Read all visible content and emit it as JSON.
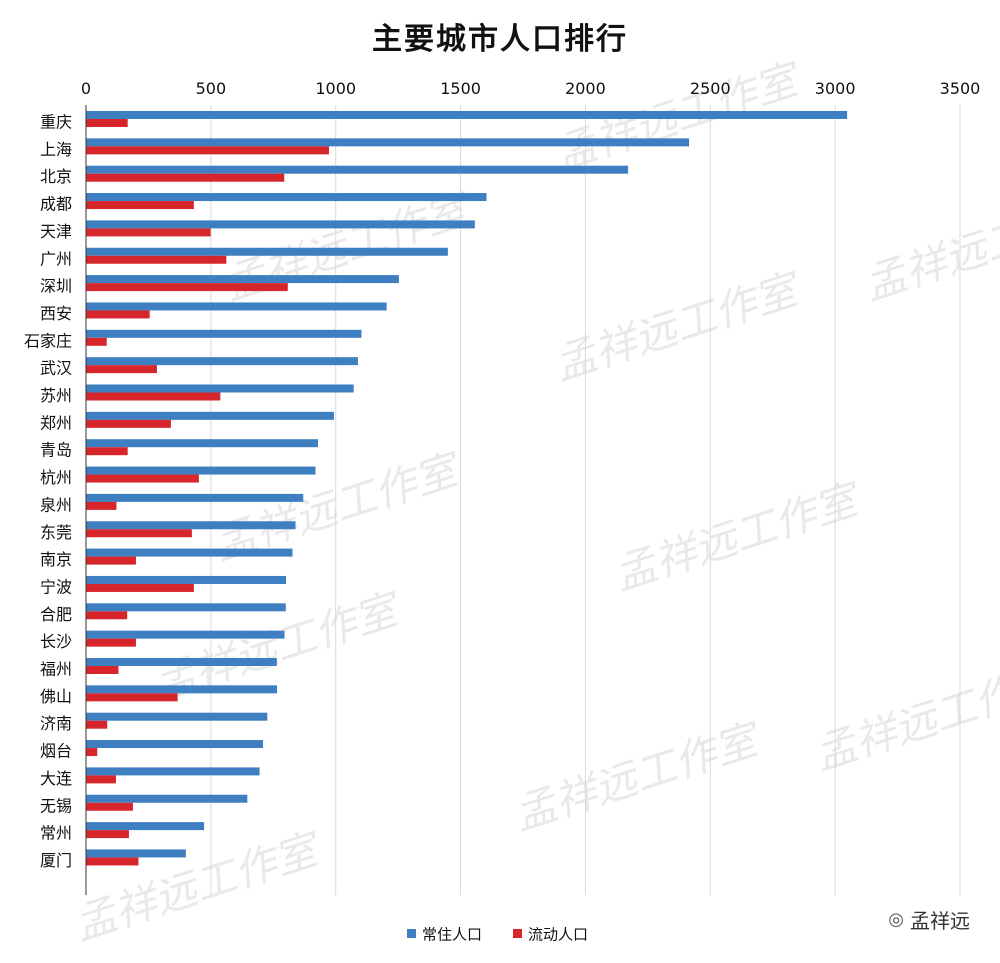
{
  "chart_data": {
    "type": "bar",
    "orientation": "horizontal",
    "title": "主要城市人口排行",
    "categories": [
      "重庆",
      "上海",
      "北京",
      "成都",
      "天津",
      "广州",
      "深圳",
      "西安",
      "石家庄",
      "武汉",
      "苏州",
      "郑州",
      "青岛",
      "杭州",
      "泉州",
      "东莞",
      "南京",
      "宁波",
      "合肥",
      "长沙",
      "福州",
      "佛山",
      "济南",
      "烟台",
      "大连",
      "无锡",
      "常州",
      "厦门"
    ],
    "series": [
      {
        "name": "常住人口",
        "color": "#3d7fc1",
        "values": [
          3048,
          2415,
          2171,
          1604,
          1557,
          1449,
          1253,
          1204,
          1103,
          1089,
          1072,
          993,
          929,
          919,
          870,
          839,
          827,
          801,
          800,
          795,
          764,
          765,
          726,
          709,
          695,
          646,
          473,
          400
        ]
      },
      {
        "name": "流动人口",
        "color": "#d7262b",
        "values": [
          167,
          973,
          794,
          432,
          499,
          562,
          808,
          255,
          83,
          284,
          538,
          340,
          167,
          452,
          122,
          424,
          200,
          432,
          165,
          200,
          130,
          367,
          85,
          45,
          120,
          188,
          172,
          210
        ]
      }
    ],
    "xlim": [
      0,
      3500
    ],
    "xticks": [
      0,
      500,
      1000,
      1500,
      2000,
      2500,
      3000,
      3500
    ],
    "xaxis_position": "top",
    "grid": true,
    "legend_position": "bottom-center"
  },
  "watermark": "孟祥远工作室",
  "brand": {
    "icon": "wechat-icon",
    "glyph": "◎",
    "label": "孟祥远"
  }
}
